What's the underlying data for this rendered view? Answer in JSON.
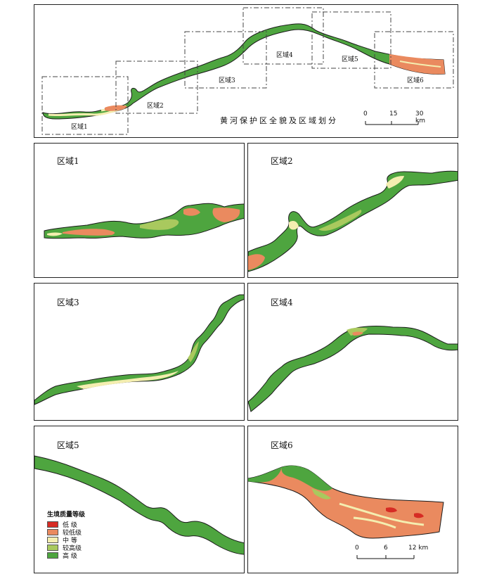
{
  "overview": {
    "title": "黄河保护区全貌及区域划分",
    "region_labels": [
      "区域1",
      "区域2",
      "区域3",
      "区域4",
      "区域5",
      "区域6"
    ],
    "scale": {
      "ticks": [
        "0",
        "15",
        "30 km"
      ]
    }
  },
  "panels": [
    {
      "label": "区域1"
    },
    {
      "label": "区域2"
    },
    {
      "label": "区域3"
    },
    {
      "label": "区域4"
    },
    {
      "label": "区域5"
    },
    {
      "label": "区域6"
    }
  ],
  "legend": {
    "title": "生境质量等级",
    "items": [
      {
        "label": "低  级",
        "color": "#d62b24"
      },
      {
        "label": "较低级",
        "color": "#ea8a5f"
      },
      {
        "label": "中  等",
        "color": "#f4eeb0"
      },
      {
        "label": "较高级",
        "color": "#a9c95e"
      },
      {
        "label": "高  级",
        "color": "#4ea53f"
      }
    ]
  },
  "detail_scale": {
    "ticks": [
      "0",
      "6",
      "12 km"
    ]
  },
  "colors": {
    "high": "#4ea53f",
    "mid_high": "#a9c95e",
    "medium": "#f4eeb0",
    "mid_low": "#ea8a5f",
    "low": "#d62b24",
    "outline": "#1a1a1a"
  }
}
